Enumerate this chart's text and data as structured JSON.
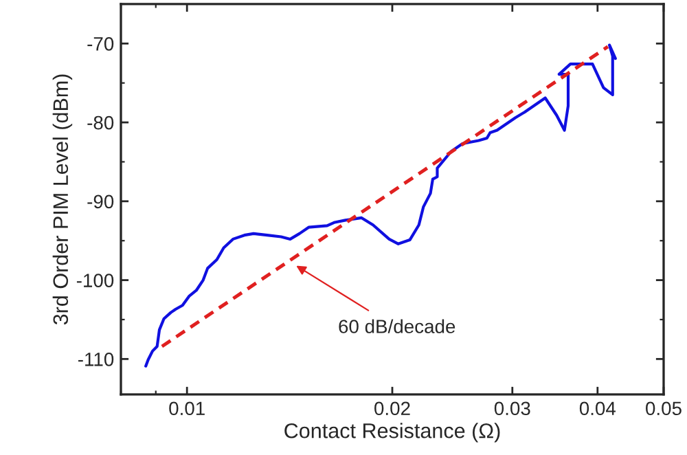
{
  "chart_data": {
    "type": "line",
    "xlabel": "Contact Resistance (Ω)",
    "ylabel": "3rd Order PIM Level (dBm)",
    "log": "x",
    "xlim": [
      0.008,
      0.05
    ],
    "xticks": [
      0.01,
      0.02,
      0.03,
      0.04,
      0.05
    ],
    "ylim": [
      -114.5,
      -65
    ],
    "yticks": [
      -110,
      -100,
      -90,
      -80,
      -70
    ],
    "annotations": [
      "60 dB/decade"
    ],
    "series": [
      {
        "color": "#1010e0",
        "line_style": "solid",
        "x": [
          0.0087,
          0.00877,
          0.0089,
          0.00904,
          0.00911,
          0.00925,
          0.00947,
          0.00962,
          0.00985,
          0.01008,
          0.01032,
          0.01056,
          0.01072,
          0.01106,
          0.01132,
          0.01168,
          0.01214,
          0.01252,
          0.01311,
          0.01374,
          0.01417,
          0.01462,
          0.01508,
          0.01605,
          0.01643,
          0.01707,
          0.01803,
          0.01874,
          0.01979,
          0.02041,
          0.02122,
          0.02188,
          0.02222,
          0.02275,
          0.02293,
          0.02328,
          0.02328,
          0.02439,
          0.02535,
          0.02677,
          0.02753,
          0.02783,
          0.02849,
          0.03031,
          0.03126,
          0.03352,
          0.03484,
          0.03577,
          0.03622,
          0.03622,
          0.03512,
          0.0365,
          0.03932,
          0.04081,
          0.04209,
          0.04209,
          0.04164,
          0.04249
        ],
        "values": [
          -110.9,
          -110.1,
          -109.0,
          -108.4,
          -106.3,
          -104.9,
          -104.1,
          -103.7,
          -103.2,
          -102.0,
          -101.3,
          -100.0,
          -98.5,
          -97.4,
          -95.9,
          -94.8,
          -94.3,
          -94.1,
          -94.3,
          -94.5,
          -94.8,
          -94.1,
          -93.3,
          -93.1,
          -92.7,
          -92.4,
          -92.1,
          -93.0,
          -94.8,
          -95.4,
          -94.9,
          -93.0,
          -90.7,
          -89.0,
          -87.2,
          -86.9,
          -85.8,
          -83.7,
          -82.7,
          -82.3,
          -82.0,
          -81.3,
          -81.0,
          -79.4,
          -78.7,
          -76.9,
          -79.1,
          -81.0,
          -77.9,
          -73.9,
          -73.9,
          -72.6,
          -72.6,
          -75.6,
          -76.5,
          -71.6,
          -70.2,
          -71.9
        ]
      },
      {
        "color": "#e02020",
        "line_style": "dashed",
        "x": [
          0.00919,
          0.04141
        ],
        "values": [
          -108.4,
          -70.4
        ]
      }
    ]
  }
}
